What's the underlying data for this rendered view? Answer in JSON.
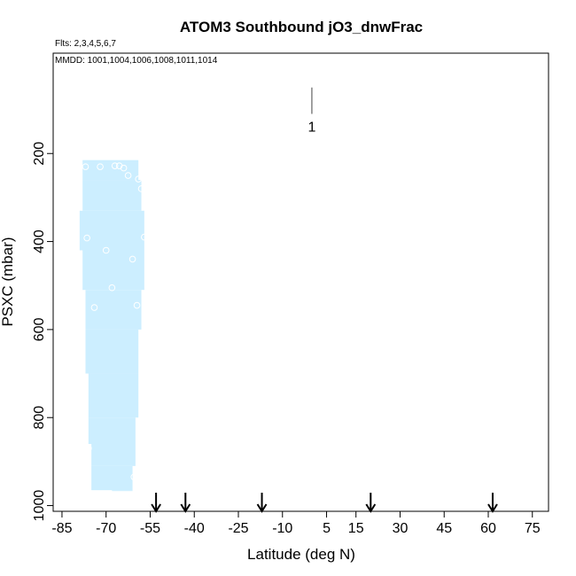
{
  "chart_data": {
    "type": "scatter",
    "title": "ATOM3 Southbound jO3_dnwFrac",
    "subtitle_flights": "Flts: 2,3,4,5,6,7",
    "subtitle_dates": "MMDD: 1001,1004,1006,1008,1011,1014",
    "xlabel": "Latitude (deg N)",
    "ylabel": "PSXC (mbar)",
    "xlim": [
      -85,
      85
    ],
    "ylim": [
      1000,
      0
    ],
    "x_ticks": [
      -85,
      -70,
      -55,
      -40,
      -25,
      -10,
      5,
      15,
      30,
      45,
      60,
      75
    ],
    "x_tick_labels": [
      "-85",
      "-70",
      "-55",
      "-40",
      "-25",
      "-10",
      "5",
      "15",
      "30",
      "45",
      "60",
      "75"
    ],
    "y_ticks": [
      200,
      400,
      600,
      800,
      1000
    ],
    "y_tick_labels": [
      "200",
      "400",
      "600",
      "800",
      "1000"
    ],
    "grid": false,
    "shaded_region": {
      "color": "#cceeff",
      "profile": [
        {
          "p": 215,
          "lat_min": -78,
          "lat_max": -59
        },
        {
          "p": 260,
          "lat_min": -78,
          "lat_max": -58
        },
        {
          "p": 330,
          "lat_min": -79,
          "lat_max": -57
        },
        {
          "p": 420,
          "lat_min": -78,
          "lat_max": -57
        },
        {
          "p": 510,
          "lat_min": -77,
          "lat_max": -58
        },
        {
          "p": 600,
          "lat_min": -77,
          "lat_max": -59
        },
        {
          "p": 700,
          "lat_min": -76,
          "lat_max": -59
        },
        {
          "p": 800,
          "lat_min": -76,
          "lat_max": -60
        },
        {
          "p": 860,
          "lat_min": -75,
          "lat_max": -60
        },
        {
          "p": 910,
          "lat_min": -75,
          "lat_max": -61
        },
        {
          "p": 965,
          "lat_min": -68,
          "lat_max": -61
        }
      ]
    },
    "points": [
      {
        "x": -77,
        "y": 230
      },
      {
        "x": -72,
        "y": 230
      },
      {
        "x": -67,
        "y": 228
      },
      {
        "x": -65.5,
        "y": 228
      },
      {
        "x": -64,
        "y": 233
      },
      {
        "x": -62.5,
        "y": 250
      },
      {
        "x": -59,
        "y": 258
      },
      {
        "x": -58,
        "y": 280
      },
      {
        "x": -76.5,
        "y": 392
      },
      {
        "x": -57,
        "y": 390
      },
      {
        "x": -70,
        "y": 420
      },
      {
        "x": -61,
        "y": 440
      },
      {
        "x": -68,
        "y": 505
      },
      {
        "x": -74,
        "y": 550
      },
      {
        "x": -59.5,
        "y": 545
      },
      {
        "x": -76,
        "y": 870
      },
      {
        "x": -60.5,
        "y": 935
      }
    ],
    "flight_markers": [
      {
        "label": "1",
        "x": 0,
        "p_top": 50,
        "p_bottom": 110
      }
    ],
    "arrows_latitude": [
      -53,
      -43,
      -17,
      20,
      61.5
    ]
  }
}
